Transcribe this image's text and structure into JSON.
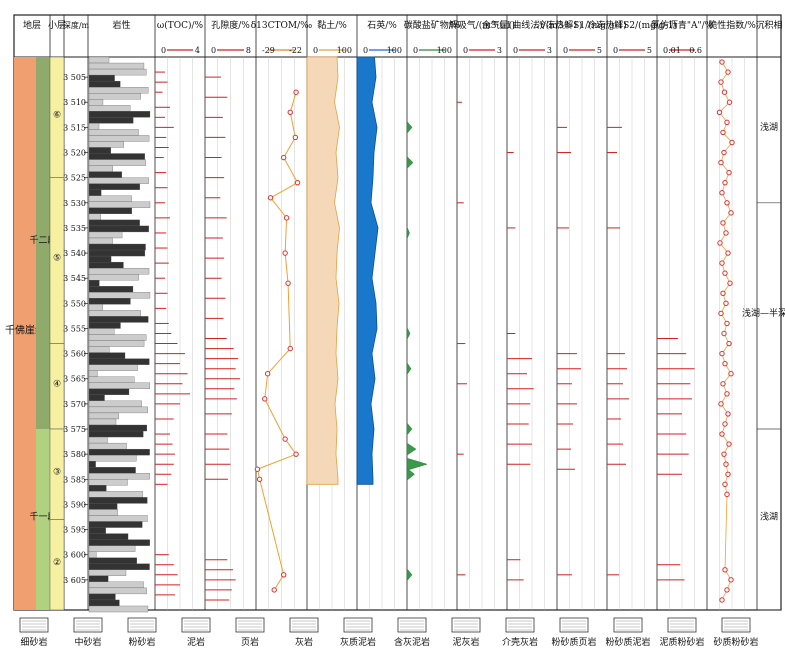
{
  "chart_data": {
    "type": "well-log",
    "headers": {
      "formation": "地层",
      "sublayer": "小层",
      "depth": "深度/m",
      "lithology": "岩性",
      "toc": "ω(TOC)/%",
      "porosity": "孔隙度/%",
      "d13c": "δ13CTOM/‰",
      "clay": "黏土/%",
      "quartz": "石英/%",
      "carbonate": "碳酸盐矿物/%",
      "desorb": "解吸气/(m3·t-1)",
      "gas": "含气量(曲线法)/(m3·t-1)",
      "s1": "冷冻热解S1/(mg·g-1)",
      "s2": "冷冻热解S2/(mg·g-1)",
      "bitumen": "氯仿沥青\"A\"/%",
      "brittle": "脆性指数/%",
      "facies": "沉积相"
    },
    "scales": {
      "toc": [
        "0",
        "4"
      ],
      "porosity": [
        "0",
        "8"
      ],
      "d13c": [
        "-29",
        "-22"
      ],
      "clay": [
        "0",
        "100"
      ],
      "quartz": [
        "0",
        "100"
      ],
      "carbonate": [
        "0",
        "100"
      ],
      "desorb": [
        "0",
        "3"
      ],
      "gas": [
        "0",
        "3"
      ],
      "s1": [
        "0",
        "5"
      ],
      "s2": [
        "0",
        "5"
      ],
      "bitumen": [
        "0.01",
        "0.6"
      ]
    },
    "depth_range": [
      3501,
      3611
    ],
    "depth_ticks": [
      "3 505",
      "3 510",
      "3 515",
      "3 520",
      "3 525",
      "3 530",
      "3 535",
      "3 540",
      "3 545",
      "3 550",
      "3 555",
      "3 560",
      "3 565",
      "3 570",
      "3 575",
      "3 580",
      "3 585",
      "3 590",
      "3 595",
      "3 600",
      "3 605"
    ],
    "formation": "千佛崖组",
    "members": [
      {
        "label": "千二段",
        "top": 3501,
        "bottom": 3575
      },
      {
        "label": "千一段",
        "top": 3575,
        "bottom": 3611
      }
    ],
    "sublayers": [
      {
        "label": "⑥",
        "top": 3501,
        "bottom": 3525
      },
      {
        "label": "⑤",
        "top": 3525,
        "bottom": 3558
      },
      {
        "label": "④",
        "top": 3558,
        "bottom": 3575
      },
      {
        "label": "③",
        "top": 3575,
        "bottom": 3593
      },
      {
        "label": "②",
        "top": 3593,
        "bottom": 3611
      }
    ],
    "facies": [
      {
        "label": "浅湖",
        "top": 3501,
        "bottom": 3530
      },
      {
        "label": "浅湖—半深湖",
        "top": 3530,
        "bottom": 3575
      },
      {
        "label": "浅湖",
        "top": 3575,
        "bottom": 3611
      }
    ],
    "d13c_points": [
      [
        3508,
        -23.5
      ],
      [
        3512,
        -24.3
      ],
      [
        3517,
        -23.6
      ],
      [
        3521,
        -25.2
      ],
      [
        3526,
        -23.3
      ],
      [
        3529,
        -27.0
      ],
      [
        3533,
        -24.8
      ],
      [
        3540,
        -25.0
      ],
      [
        3546,
        -24.6
      ],
      [
        3559,
        -24.3
      ],
      [
        3564,
        -27.4
      ],
      [
        3569,
        -27.8
      ],
      [
        3577,
        -25.0
      ],
      [
        3580,
        -23.5
      ],
      [
        3583,
        -28.8
      ],
      [
        3585,
        -28.5
      ],
      [
        3604,
        -25.2
      ],
      [
        3607,
        -26.5
      ]
    ],
    "toc_samples": [
      [
        3504,
        0.8
      ],
      [
        3506,
        1.0
      ],
      [
        3508,
        0.6
      ],
      [
        3511,
        1.2
      ],
      [
        3513,
        0.8
      ],
      [
        3515,
        1.5
      ],
      [
        3517,
        0.9
      ],
      [
        3519,
        1.1
      ],
      [
        3521,
        0.7
      ],
      [
        3524,
        0.9
      ],
      [
        3527,
        1.0
      ],
      [
        3530,
        0.8
      ],
      [
        3533,
        1.2
      ],
      [
        3536,
        0.9
      ],
      [
        3539,
        1.0
      ],
      [
        3542,
        1.1
      ],
      [
        3545,
        0.8
      ],
      [
        3548,
        1.0
      ],
      [
        3551,
        0.9
      ],
      [
        3554,
        1.1
      ],
      [
        3556,
        1.3
      ],
      [
        3558,
        1.8
      ],
      [
        3560,
        2.4
      ],
      [
        3562,
        2.0
      ],
      [
        3564,
        2.6
      ],
      [
        3566,
        2.2
      ],
      [
        3568,
        2.8
      ],
      [
        3570,
        2.0
      ],
      [
        3573,
        1.5
      ],
      [
        3576,
        1.2
      ],
      [
        3578,
        1.4
      ],
      [
        3580,
        1.6
      ],
      [
        3582,
        1.5
      ],
      [
        3584,
        1.3
      ],
      [
        3586,
        1.0
      ],
      [
        3600,
        1.1
      ],
      [
        3602,
        1.5
      ],
      [
        3604,
        1.8
      ],
      [
        3606,
        2.0
      ],
      [
        3608,
        1.6
      ]
    ],
    "porosity_samples": [
      [
        3505,
        2.5
      ],
      [
        3509,
        3.5
      ],
      [
        3513,
        2.8
      ],
      [
        3517,
        3.2
      ],
      [
        3521,
        2.6
      ],
      [
        3525,
        3.0
      ],
      [
        3529,
        2.4
      ],
      [
        3533,
        3.4
      ],
      [
        3537,
        2.8
      ],
      [
        3541,
        3.0
      ],
      [
        3545,
        2.6
      ],
      [
        3549,
        3.2
      ],
      [
        3553,
        2.9
      ],
      [
        3557,
        3.4
      ],
      [
        3559,
        4.5
      ],
      [
        3561,
        5.2
      ],
      [
        3563,
        4.8
      ],
      [
        3565,
        5.5
      ],
      [
        3567,
        4.6
      ],
      [
        3569,
        5.0
      ],
      [
        3572,
        4.2
      ],
      [
        3576,
        3.5
      ],
      [
        3579,
        3.8
      ],
      [
        3582,
        4.0
      ],
      [
        3585,
        3.6
      ],
      [
        3601,
        3.5
      ],
      [
        3603,
        4.4
      ],
      [
        3605,
        4.8
      ],
      [
        3607,
        4.2
      ],
      [
        3609,
        3.8
      ]
    ],
    "clay_profile": [
      [
        3501,
        60
      ],
      [
        3505,
        62
      ],
      [
        3510,
        55
      ],
      [
        3515,
        65
      ],
      [
        3520,
        58
      ],
      [
        3525,
        62
      ],
      [
        3530,
        55
      ],
      [
        3535,
        65
      ],
      [
        3540,
        60
      ],
      [
        3545,
        58
      ],
      [
        3550,
        64
      ],
      [
        3555,
        60
      ],
      [
        3560,
        58
      ],
      [
        3565,
        62
      ],
      [
        3570,
        56
      ],
      [
        3575,
        60
      ],
      [
        3580,
        58
      ],
      [
        3585,
        62
      ],
      [
        3586,
        62
      ]
    ],
    "quartz_profile": [
      [
        3501,
        35
      ],
      [
        3505,
        38
      ],
      [
        3510,
        30
      ],
      [
        3515,
        40
      ],
      [
        3520,
        34
      ],
      [
        3525,
        32
      ],
      [
        3530,
        28
      ],
      [
        3535,
        42
      ],
      [
        3540,
        36
      ],
      [
        3545,
        30
      ],
      [
        3550,
        38
      ],
      [
        3555,
        40
      ],
      [
        3560,
        30
      ],
      [
        3565,
        36
      ],
      [
        3570,
        28
      ],
      [
        3575,
        34
      ],
      [
        3580,
        30
      ],
      [
        3585,
        32
      ],
      [
        3586,
        32
      ]
    ],
    "carbonate_peaks": [
      [
        3515,
        10
      ],
      [
        3522,
        12
      ],
      [
        3536,
        5
      ],
      [
        3556,
        6
      ],
      [
        3563,
        8
      ],
      [
        3575,
        10
      ],
      [
        3579,
        18
      ],
      [
        3582,
        40
      ],
      [
        3584,
        15
      ],
      [
        3604,
        10
      ]
    ],
    "desorb_samples": [
      [
        3510,
        0.3
      ],
      [
        3530,
        0.4
      ],
      [
        3558,
        0.5
      ],
      [
        3566,
        0.6
      ],
      [
        3580,
        0.4
      ],
      [
        3604,
        0.5
      ]
    ],
    "gas_samples": [
      [
        3520,
        0.4
      ],
      [
        3535,
        0.5
      ],
      [
        3556,
        0.5
      ],
      [
        3561,
        1.5
      ],
      [
        3564,
        1.2
      ],
      [
        3567,
        1.6
      ],
      [
        3570,
        1.4
      ],
      [
        3574,
        1.3
      ],
      [
        3578,
        1.5
      ],
      [
        3582,
        1.4
      ],
      [
        3601,
        0.8
      ],
      [
        3605,
        1.0
      ]
    ],
    "s1_samples": [
      [
        3515,
        1.0
      ],
      [
        3520,
        1.4
      ],
      [
        3535,
        1.2
      ],
      [
        3560,
        2.0
      ],
      [
        3563,
        2.4
      ],
      [
        3566,
        1.5
      ],
      [
        3570,
        2.0
      ],
      [
        3574,
        1.6
      ],
      [
        3579,
        1.4
      ],
      [
        3583,
        1.8
      ],
      [
        3604,
        1.5
      ]
    ],
    "s2_samples": [
      [
        3515,
        1.5
      ],
      [
        3520,
        1.0
      ],
      [
        3535,
        1.3
      ],
      [
        3560,
        1.8
      ],
      [
        3563,
        2.0
      ],
      [
        3566,
        1.6
      ],
      [
        3569,
        2.2
      ],
      [
        3573,
        1.4
      ],
      [
        3578,
        1.6
      ],
      [
        3582,
        1.9
      ],
      [
        3604,
        1.2
      ]
    ],
    "bitumen_samples": [
      [
        3557,
        0.25
      ],
      [
        3560,
        0.35
      ],
      [
        3563,
        0.45
      ],
      [
        3566,
        0.4
      ],
      [
        3569,
        0.42
      ],
      [
        3572,
        0.3
      ],
      [
        3576,
        0.35
      ],
      [
        3580,
        0.38
      ],
      [
        3584,
        0.3
      ],
      [
        3602,
        0.28
      ],
      [
        3605,
        0.33
      ]
    ],
    "brittle_points": [
      [
        3502,
        30
      ],
      [
        3504,
        42
      ],
      [
        3506,
        28
      ],
      [
        3508,
        35
      ],
      [
        3510,
        45
      ],
      [
        3512,
        25
      ],
      [
        3514,
        40
      ],
      [
        3516,
        32
      ],
      [
        3518,
        50
      ],
      [
        3520,
        34
      ],
      [
        3522,
        28
      ],
      [
        3524,
        44
      ],
      [
        3526,
        36
      ],
      [
        3528,
        30
      ],
      [
        3530,
        40
      ],
      [
        3532,
        48
      ],
      [
        3534,
        32
      ],
      [
        3536,
        38
      ],
      [
        3538,
        26
      ],
      [
        3540,
        42
      ],
      [
        3542,
        30
      ],
      [
        3544,
        36
      ],
      [
        3546,
        46
      ],
      [
        3548,
        32
      ],
      [
        3550,
        38
      ],
      [
        3552,
        28
      ],
      [
        3554,
        40
      ],
      [
        3556,
        34
      ],
      [
        3558,
        44
      ],
      [
        3560,
        30
      ],
      [
        3562,
        36
      ],
      [
        3564,
        48
      ],
      [
        3566,
        32
      ],
      [
        3568,
        40
      ],
      [
        3570,
        28
      ],
      [
        3572,
        42
      ],
      [
        3574,
        36
      ],
      [
        3576,
        30
      ],
      [
        3578,
        44
      ],
      [
        3580,
        34
      ],
      [
        3582,
        38
      ],
      [
        3584,
        42
      ],
      [
        3586,
        36
      ],
      [
        3588,
        40
      ],
      [
        3603,
        36
      ],
      [
        3605,
        48
      ],
      [
        3607,
        40
      ],
      [
        3609,
        30
      ]
    ],
    "legend": [
      "细砂岩",
      "中砂岩",
      "粉砂岩",
      "泥岩",
      "页岩",
      "灰岩",
      "灰质泥岩",
      "含灰泥岩",
      "泥灰岩",
      "介壳灰岩",
      "粉砂质页岩",
      "粉砂质泥岩",
      "泥质粉砂岩",
      "砂质粉砂岩"
    ]
  }
}
